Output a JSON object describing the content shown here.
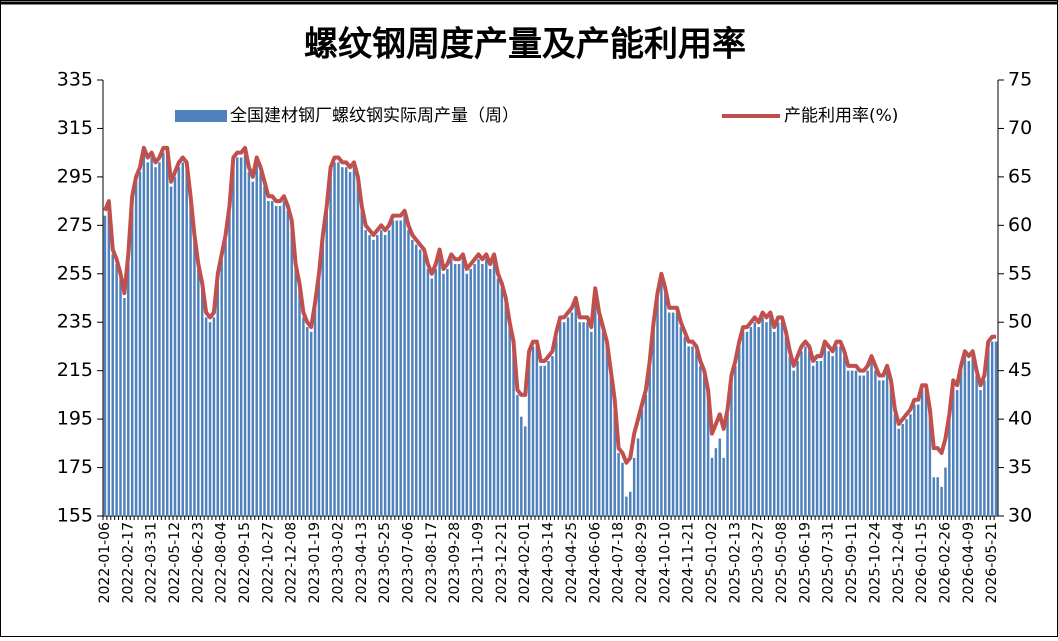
{
  "chart_data": {
    "type": "bar",
    "title": "螺纹钢周度产量及产能利用率",
    "categories": [
      "2022-01-06",
      null,
      null,
      null,
      null,
      null,
      "2022-02-17",
      null,
      null,
      null,
      null,
      null,
      "2022-03-31",
      null,
      null,
      null,
      null,
      null,
      "2022-05-12",
      null,
      null,
      null,
      null,
      null,
      "2022-06-23",
      null,
      null,
      null,
      null,
      null,
      "2022-08-04",
      null,
      null,
      null,
      null,
      null,
      "2022-09-15",
      null,
      null,
      null,
      null,
      null,
      "2022-10-27",
      null,
      null,
      null,
      null,
      null,
      "2022-12-08",
      null,
      null,
      null,
      null,
      null,
      "2023-01-19",
      null,
      null,
      null,
      null,
      null,
      "2023-03-02",
      null,
      null,
      null,
      null,
      null,
      "2023-04-13",
      null,
      null,
      null,
      null,
      null,
      "2023-05-25",
      null,
      null,
      null,
      null,
      null,
      "2023-07-06",
      null,
      null,
      null,
      null,
      null,
      "2023-08-17",
      null,
      null,
      null,
      null,
      null,
      "2023-09-28",
      null,
      null,
      null,
      null,
      null,
      "2023-11-09",
      null,
      null,
      null,
      null,
      null,
      "2023-12-21",
      null,
      null,
      null,
      null,
      null,
      "2024-02-01",
      null,
      null,
      null,
      null,
      null,
      "2024-03-14",
      null,
      null,
      null,
      null,
      null,
      "2024-04-25",
      null,
      null,
      null,
      null,
      null,
      "2024-06-06",
      null,
      null,
      null,
      null,
      null,
      "2024-07-18",
      null,
      null,
      null,
      null,
      null,
      "2024-08-29",
      null,
      null,
      null,
      null,
      null,
      "2024-10-10",
      null,
      null,
      null,
      null,
      null,
      "2024-11-21",
      null,
      null,
      null,
      null,
      null,
      "2025-01-02",
      null,
      null,
      null,
      null,
      null,
      "2025-02-13",
      null,
      null,
      null,
      null,
      null,
      "2025-03-27",
      null,
      null,
      null,
      null,
      null,
      "2025-05-08",
      null,
      null,
      null,
      null,
      null,
      "2025-06-19",
      null,
      null,
      null,
      null,
      null,
      "2025-07-31",
      null,
      null,
      null,
      null,
      null,
      "2025-09-11",
      null,
      null,
      null,
      null,
      null,
      "2025-10-24",
      null,
      null,
      null,
      null,
      null,
      "2025-12-04",
      null,
      null,
      null,
      null,
      null,
      "2026-01-15",
      null,
      null,
      null,
      null,
      null,
      "2026-02-26",
      null,
      null,
      null,
      null,
      null,
      "2026-04-09",
      null,
      null,
      null,
      null,
      null,
      "2026-05-21",
      null
    ],
    "series": [
      {
        "name": "全国建材钢厂螺纹钢实际周产量（周）",
        "type": "bar",
        "color": "#4f81bd",
        "values": [
          279,
          283,
          263,
          259,
          253,
          245,
          261,
          285,
          293,
          297,
          305,
          301,
          303,
          299,
          301,
          305,
          305,
          291,
          295,
          299,
          301,
          299,
          285,
          269,
          257,
          249,
          237,
          235,
          237,
          253,
          261,
          269,
          281,
          301,
          303,
          303,
          305,
          297,
          293,
          301,
          297,
          291,
          285,
          285,
          283,
          283,
          285,
          281,
          275,
          257,
          249,
          237,
          233,
          231,
          241,
          253,
          269,
          281,
          297,
          301,
          301,
          299,
          299,
          297,
          299,
          293,
          281,
          273,
          271,
          269,
          271,
          273,
          271,
          273,
          277,
          277,
          277,
          279,
          273,
          269,
          267,
          265,
          263,
          257,
          253,
          257,
          263,
          255,
          257,
          261,
          259,
          259,
          261,
          255,
          257,
          259,
          261,
          259,
          261,
          257,
          261,
          253,
          249,
          243,
          233,
          225,
          205,
          196,
          192,
          221,
          225,
          225,
          217,
          217,
          219,
          221,
          229,
          235,
          235,
          237,
          239,
          243,
          235,
          235,
          235,
          231,
          247,
          237,
          231,
          225,
          213,
          201,
          181,
          177,
          163,
          165,
          179,
          187,
          199,
          205,
          217,
          233,
          245,
          253,
          247,
          239,
          239,
          239,
          233,
          229,
          225,
          225,
          223,
          217,
          213,
          205,
          179,
          183,
          187,
          179,
          197,
          211,
          217,
          225,
          231,
          231,
          233,
          235,
          233,
          237,
          235,
          237,
          231,
          235,
          235,
          229,
          221,
          215,
          219,
          223,
          225,
          223,
          217,
          219,
          219,
          225,
          223,
          221,
          225,
          225,
          221,
          215,
          215,
          215,
          213,
          213,
          215,
          219,
          215,
          211,
          211,
          215,
          209,
          197,
          191,
          193,
          195,
          197,
          201,
          201,
          207,
          207,
          197,
          171,
          171,
          167,
          175,
          195,
          209,
          207,
          215,
          221,
          219,
          221,
          213,
          207,
          211,
          225,
          227,
          227
        ]
      },
      {
        "name": "产能利用率(%)",
        "type": "line",
        "axis": "y2",
        "color": "#c0504d",
        "values": [
          61.5,
          62.5,
          57.5,
          56.5,
          55,
          53,
          57,
          63,
          65,
          66,
          68,
          67,
          67.5,
          66.5,
          67,
          68,
          68,
          64.5,
          65.5,
          66.5,
          67,
          66.5,
          63,
          59,
          56,
          54,
          51,
          50.5,
          51,
          55,
          57,
          59,
          62,
          67,
          67.5,
          67.5,
          68,
          66,
          65,
          67,
          66,
          64.5,
          63,
          63,
          62.5,
          62.5,
          63,
          62,
          60.5,
          56,
          54,
          51,
          50,
          49.5,
          52,
          55,
          59,
          62,
          66,
          67,
          67,
          66.5,
          66.5,
          66,
          66.5,
          65,
          62,
          60,
          59.5,
          59,
          59.5,
          60,
          59.5,
          60,
          61,
          61,
          61,
          61.5,
          60,
          59,
          58.5,
          58,
          57.5,
          56,
          55,
          56,
          57.5,
          55.5,
          56,
          57,
          56.5,
          56.5,
          57,
          55.5,
          56,
          56.5,
          57,
          56.5,
          57,
          56,
          57,
          55,
          54,
          52.5,
          50,
          48,
          43,
          42.5,
          42.5,
          47,
          48,
          48,
          46,
          46,
          46.5,
          47,
          49,
          50.5,
          50.5,
          51,
          51.5,
          52.5,
          50.5,
          50.5,
          50.5,
          49.5,
          53.5,
          51,
          49.5,
          48,
          45,
          42,
          37,
          36.5,
          35.5,
          36,
          38.5,
          40,
          41.5,
          43,
          46,
          50,
          53,
          55,
          53.5,
          51.5,
          51.5,
          51.5,
          50,
          49,
          48,
          48,
          47.5,
          46,
          45,
          43,
          38.5,
          39.5,
          40.5,
          39,
          41,
          44.5,
          46,
          48,
          49.5,
          49.5,
          50,
          50.5,
          50,
          51,
          50.5,
          51,
          49.5,
          50.5,
          50.5,
          49,
          47,
          45.5,
          46.5,
          47.5,
          48,
          47.5,
          46,
          46.5,
          46.5,
          48,
          47.5,
          47,
          48,
          48,
          47,
          45.5,
          45.5,
          45.5,
          45,
          45,
          45.5,
          46.5,
          45.5,
          44.5,
          44.5,
          45.5,
          44,
          41,
          39.5,
          40,
          40.5,
          41,
          42,
          42,
          43.5,
          43.5,
          41,
          37,
          37,
          36.5,
          38,
          40.5,
          44,
          43.5,
          45.5,
          47,
          46.5,
          47,
          45,
          43.5,
          44.5,
          48,
          48.5,
          48.5
        ]
      }
    ],
    "ylim": [
      155,
      335
    ],
    "yticks": [
      155,
      175,
      195,
      215,
      235,
      255,
      275,
      295,
      315,
      335
    ],
    "y2lim": [
      30,
      75
    ],
    "y2ticks": [
      30,
      35,
      40,
      45,
      50,
      55,
      60,
      65,
      70,
      75
    ]
  }
}
